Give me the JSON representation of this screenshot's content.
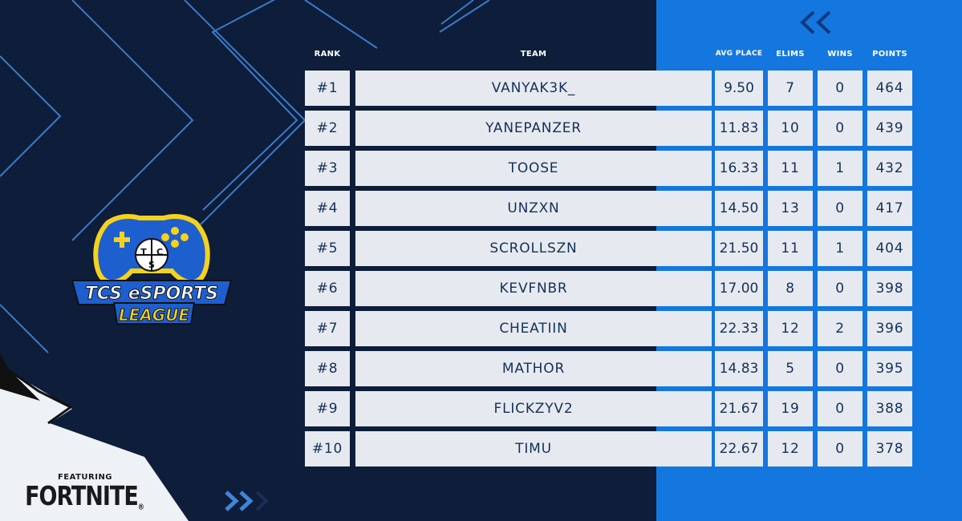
{
  "colors": {
    "background_dark": "#0d1d3a",
    "background_blue": "#1477e0",
    "cell_background": "#e6eaf0",
    "cell_text": "#14305a",
    "line_accent": "#4a90e2",
    "logo_yellow": "#f6d21c",
    "logo_blue": "#1e5fd0"
  },
  "logo": {
    "icon": "tcs-esports-league-logo",
    "letters": [
      "T",
      "C",
      "S"
    ],
    "line1": "TCS eSPORTS",
    "line2": "LEAGUE"
  },
  "sponsor": {
    "featuring": "FEATURING",
    "brand": "FORTNITE",
    "registered": "®"
  },
  "headers": {
    "rank": "RANK",
    "team": "TEAM",
    "avg_place": "AVG PLACE",
    "elims": "ELIMS",
    "wins": "WINS",
    "points": "POINTS"
  },
  "rows": [
    {
      "rank": "#1",
      "team": "VANYAK3K_",
      "avg_place": "9.50",
      "elims": "7",
      "wins": "0",
      "points": "464"
    },
    {
      "rank": "#2",
      "team": "YANEPANZER",
      "avg_place": "11.83",
      "elims": "10",
      "wins": "0",
      "points": "439"
    },
    {
      "rank": "#3",
      "team": "TOOSE",
      "avg_place": "16.33",
      "elims": "11",
      "wins": "1",
      "points": "432"
    },
    {
      "rank": "#4",
      "team": "UNZXN",
      "avg_place": "14.50",
      "elims": "13",
      "wins": "0",
      "points": "417"
    },
    {
      "rank": "#5",
      "team": "SCROLLSZN",
      "avg_place": "21.50",
      "elims": "11",
      "wins": "1",
      "points": "404"
    },
    {
      "rank": "#6",
      "team": "KEVFNBR",
      "avg_place": "17.00",
      "elims": "8",
      "wins": "0",
      "points": "398"
    },
    {
      "rank": "#7",
      "team": "CHEATIIN",
      "avg_place": "22.33",
      "elims": "12",
      "wins": "2",
      "points": "396"
    },
    {
      "rank": "#8",
      "team": "MATHOR",
      "avg_place": "14.83",
      "elims": "5",
      "wins": "0",
      "points": "395"
    },
    {
      "rank": "#9",
      "team": "FLICKZYV2",
      "avg_place": "21.67",
      "elims": "19",
      "wins": "0",
      "points": "388"
    },
    {
      "rank": "#10",
      "team": "TIMU",
      "avg_place": "22.67",
      "elims": "12",
      "wins": "0",
      "points": "378"
    }
  ]
}
